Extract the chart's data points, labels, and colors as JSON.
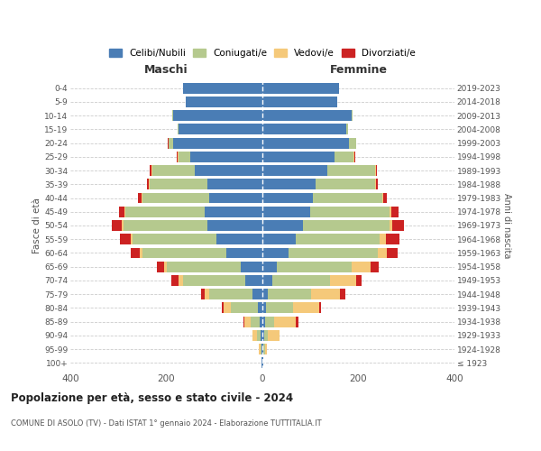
{
  "age_groups": [
    "100+",
    "95-99",
    "90-94",
    "85-89",
    "80-84",
    "75-79",
    "70-74",
    "65-69",
    "60-64",
    "55-59",
    "50-54",
    "45-49",
    "40-44",
    "35-39",
    "30-34",
    "25-29",
    "20-24",
    "15-19",
    "10-14",
    "5-9",
    "0-4"
  ],
  "birth_years": [
    "≤ 1923",
    "1924-1928",
    "1929-1933",
    "1934-1938",
    "1939-1943",
    "1944-1948",
    "1949-1953",
    "1954-1958",
    "1959-1963",
    "1964-1968",
    "1969-1973",
    "1974-1978",
    "1979-1983",
    "1984-1988",
    "1989-1993",
    "1994-1998",
    "1999-2003",
    "2004-2008",
    "2009-2013",
    "2014-2018",
    "2019-2023"
  ],
  "colors": {
    "celibi": "#4a7db5",
    "coniugati": "#b5c98e",
    "vedovi": "#f5c97a",
    "divorziati": "#cc2222"
  },
  "maschi": {
    "celibi": [
      1,
      2,
      4,
      5,
      10,
      20,
      35,
      45,
      75,
      95,
      115,
      120,
      110,
      115,
      140,
      150,
      185,
      175,
      185,
      160,
      165
    ],
    "coniugati": [
      0,
      2,
      8,
      20,
      55,
      90,
      130,
      155,
      175,
      175,
      175,
      165,
      140,
      120,
      90,
      25,
      10,
      2,
      2,
      0,
      0
    ],
    "vedovi": [
      1,
      3,
      8,
      12,
      15,
      10,
      10,
      5,
      5,
      5,
      3,
      2,
      1,
      1,
      1,
      2,
      0,
      0,
      0,
      0,
      0
    ],
    "divorziati": [
      0,
      0,
      0,
      2,
      5,
      8,
      15,
      15,
      20,
      22,
      20,
      12,
      8,
      5,
      3,
      2,
      2,
      0,
      0,
      0,
      0
    ]
  },
  "femmine": {
    "celibi": [
      1,
      2,
      3,
      5,
      8,
      12,
      20,
      30,
      55,
      70,
      85,
      100,
      105,
      110,
      135,
      150,
      180,
      175,
      185,
      155,
      160
    ],
    "coniugati": [
      0,
      3,
      8,
      20,
      55,
      90,
      120,
      155,
      185,
      175,
      180,
      165,
      145,
      125,
      100,
      40,
      15,
      3,
      2,
      0,
      0
    ],
    "vedovi": [
      1,
      5,
      25,
      45,
      55,
      60,
      55,
      40,
      20,
      12,
      5,
      3,
      2,
      1,
      1,
      1,
      0,
      0,
      0,
      0,
      0
    ],
    "divorziati": [
      0,
      0,
      0,
      5,
      5,
      10,
      12,
      18,
      22,
      28,
      25,
      15,
      8,
      5,
      2,
      2,
      0,
      0,
      0,
      0,
      0
    ]
  },
  "title": "Popolazione per età, sesso e stato civile - 2024",
  "subtitle": "COMUNE DI ASOLO (TV) - Dati ISTAT 1° gennaio 2024 - Elaborazione TUTTITALIA.IT",
  "xlabel_left": "Maschi",
  "xlabel_right": "Femmine",
  "ylabel_left": "Fasce di età",
  "ylabel_right": "Anni di nascita",
  "xlim": 400,
  "legend_labels": [
    "Celibi/Nubili",
    "Coniugati/e",
    "Vedovi/e",
    "Divorziati/e"
  ],
  "background_color": "#ffffff"
}
